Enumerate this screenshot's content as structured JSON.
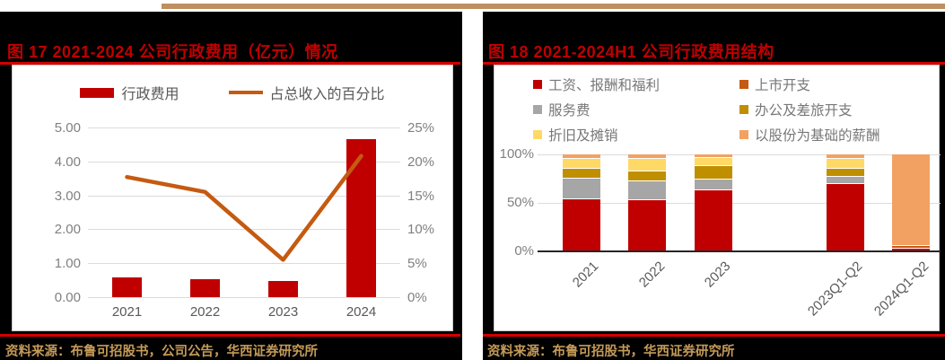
{
  "page": {
    "colors": {
      "cell_bg": "#000000",
      "page_bg": "#ffffff",
      "accent_red": "#C00000",
      "rule_red": "#D40000",
      "top_bar_tan": "#BE8F5F",
      "source_gold": "#C49A58",
      "axis_gray": "#808080",
      "label_gray": "#595959",
      "legend_gray": "#787878",
      "grid_gray": "#DBDBDB",
      "panel_border": "#C9C9C9",
      "line_orange": "#C55A11"
    }
  },
  "figures": [
    {
      "title": "图 17  2021-2024 公司行政费用（亿元）情况",
      "source": "资料来源：布鲁可招股书，公司公告，华西证券研究所"
    },
    {
      "title": "图 18  2021-2024H1 公司行政费用结构",
      "source": "资料来源：布鲁可招股书，华西证券研究所"
    }
  ],
  "chart_data": [
    {
      "type": "bar",
      "subtype": "bar+line dual axis",
      "title": "2021-2024 公司行政费用（亿元）情况",
      "categories": [
        "2021",
        "2022",
        "2023",
        "2024"
      ],
      "series": [
        {
          "name": "行政费用",
          "type": "bar",
          "axis": "left",
          "color": "#C00000",
          "values": [
            0.58,
            0.52,
            0.47,
            4.65
          ]
        },
        {
          "name": "占总收入的百分比",
          "type": "line",
          "axis": "right",
          "color": "#C55A11",
          "values": [
            17.7,
            15.5,
            5.5,
            20.8
          ]
        }
      ],
      "left_axis": {
        "label": "亿元",
        "min": 0,
        "max": 5,
        "ticks": [
          "0.00",
          "1.00",
          "2.00",
          "3.00",
          "4.00",
          "5.00"
        ]
      },
      "right_axis": {
        "label": "%",
        "min": 0,
        "max": 25,
        "ticks": [
          "0%",
          "5%",
          "10%",
          "15%",
          "20%",
          "25%"
        ]
      },
      "grid": true,
      "legend_position": "top"
    },
    {
      "type": "bar",
      "subtype": "stacked-percent",
      "title": "2021-2024H1 公司行政费用结构",
      "categories": [
        "2021",
        "2022",
        "2023",
        "",
        "2023Q1-Q2",
        "2024Q1-Q2"
      ],
      "unit": "%",
      "series": [
        {
          "name": "工资、报酬和福利",
          "color": "#C00000",
          "values": [
            54,
            53,
            63,
            null,
            69,
            2.5
          ]
        },
        {
          "name": "服务费",
          "color": "#A6A6A6",
          "values": [
            21,
            19,
            11,
            null,
            8,
            0
          ]
        },
        {
          "name": "办公及差旅开支",
          "color": "#BF8F00",
          "values": [
            10,
            10,
            14,
            null,
            8,
            0
          ]
        },
        {
          "name": "折旧及摊销",
          "color": "#FFD966",
          "values": [
            10,
            13,
            8,
            null,
            10,
            0
          ]
        },
        {
          "name": "上市开支",
          "color": "#C55A11",
          "values": [
            0,
            0,
            0,
            null,
            0,
            3
          ]
        },
        {
          "name": "以股份为基础的薪酬",
          "color": "#F2A163",
          "values": [
            5,
            5,
            4,
            null,
            5,
            94.5
          ]
        }
      ],
      "y_axis": {
        "min": 0,
        "max": 100,
        "ticks": [
          {
            "label": "0%",
            "value": 0
          },
          {
            "label": "50%",
            "value": 50
          },
          {
            "label": "100%",
            "value": 100
          }
        ]
      },
      "legend_order": [
        "工资、报酬和福利",
        "上市开支",
        "服务费",
        "办公及差旅开支",
        "折旧及摊销",
        "以股份为基础的薪酬"
      ],
      "legend_position": "top",
      "x_label_rotation": -45,
      "grid": true
    }
  ]
}
